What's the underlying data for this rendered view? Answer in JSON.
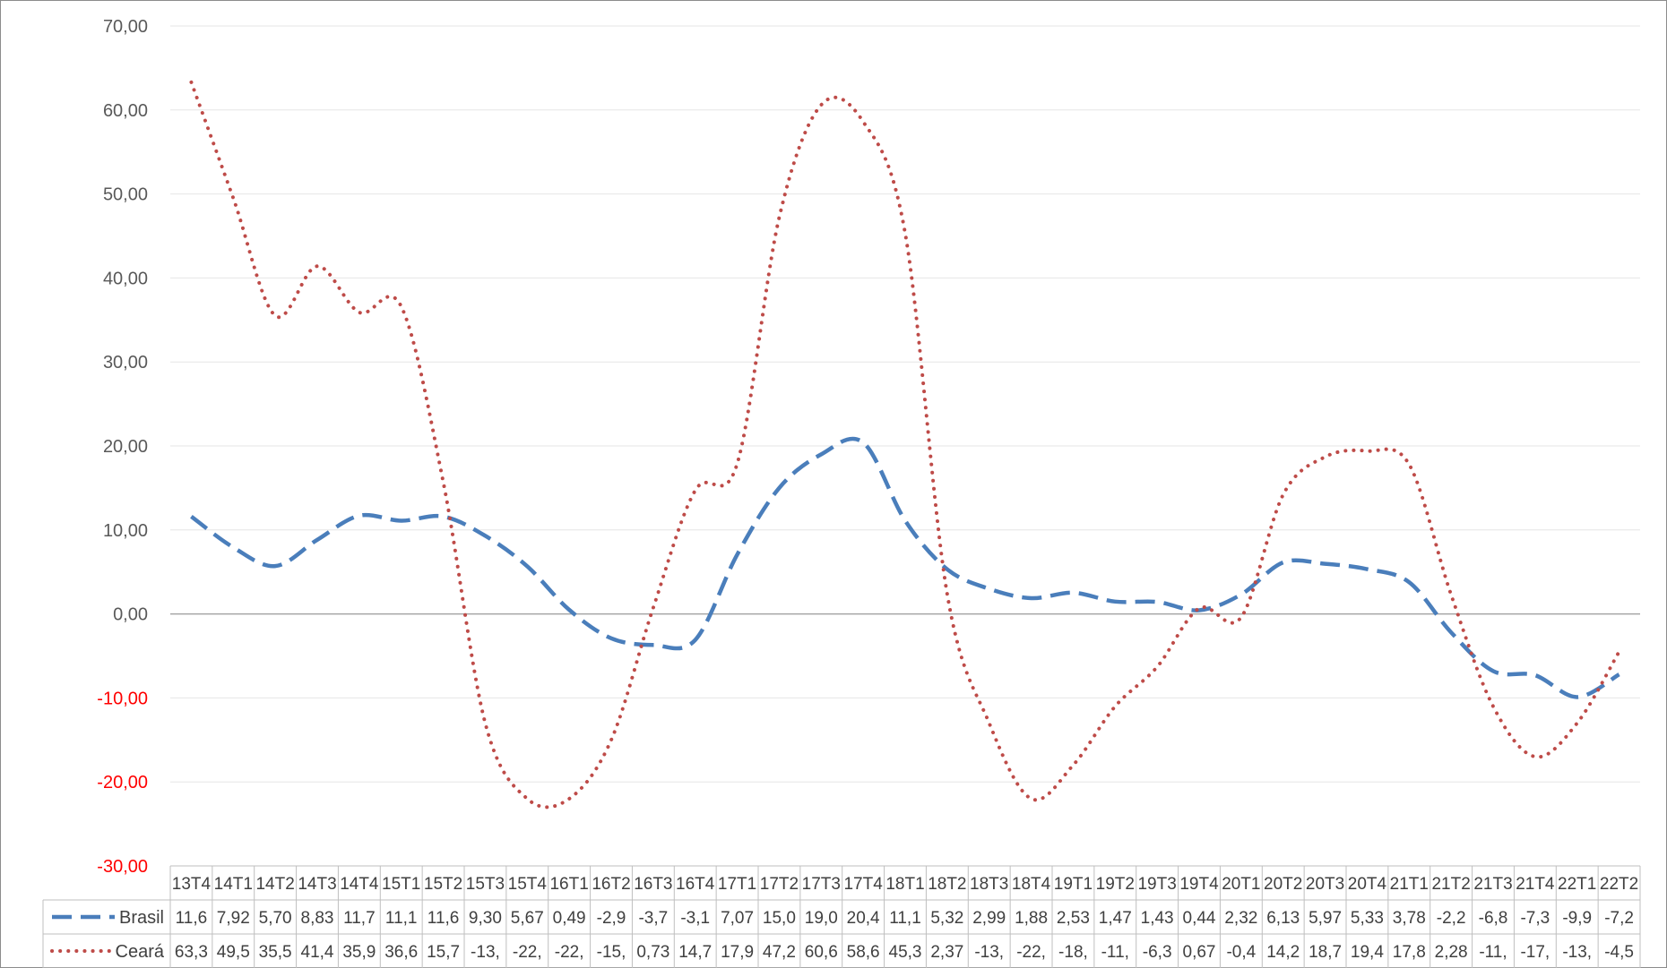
{
  "chart_data": {
    "type": "line",
    "y_ticks": [
      "70,00",
      "60,00",
      "50,00",
      "40,00",
      "30,00",
      "20,00",
      "10,00",
      "0,00",
      "-10,00",
      "-20,00",
      "-30,00"
    ],
    "ylim": [
      -30,
      70
    ],
    "grid": true,
    "legend": "data-table-left",
    "categories": [
      "13T4",
      "14T1",
      "14T2",
      "14T3",
      "14T4",
      "15T1",
      "15T2",
      "15T3",
      "15T4",
      "16T1",
      "16T2",
      "16T3",
      "16T4",
      "17T1",
      "17T2",
      "17T3",
      "17T4",
      "18T1",
      "18T2",
      "18T3",
      "18T4",
      "19T1",
      "19T2",
      "19T3",
      "19T4",
      "20T1",
      "20T2",
      "20T3",
      "20T4",
      "21T1",
      "21T2",
      "21T3",
      "21T4",
      "22T1",
      "22T2"
    ],
    "series": [
      {
        "name": "Brasil",
        "color": "#4a7ebb",
        "style": "dashed",
        "values": [
          11.6,
          7.92,
          5.7,
          8.83,
          11.7,
          11.1,
          11.6,
          9.3,
          5.67,
          0.49,
          -2.9,
          -3.7,
          -3.1,
          7.07,
          15.0,
          19.0,
          20.4,
          11.1,
          5.32,
          2.99,
          1.88,
          2.53,
          1.47,
          1.43,
          0.44,
          2.32,
          6.13,
          5.97,
          5.33,
          3.78,
          -2.2,
          -6.8,
          -7.3,
          -9.9,
          -7.2
        ],
        "labels": [
          "11,6",
          "7,92",
          "5,70",
          "8,83",
          "11,7",
          "11,1",
          "11,6",
          "9,30",
          "5,67",
          "0,49",
          "-2,9",
          "-3,7",
          "-3,1",
          "7,07",
          "15,0",
          "19,0",
          "20,4",
          "11,1",
          "5,32",
          "2,99",
          "1,88",
          "2,53",
          "1,47",
          "1,43",
          "0,44",
          "2,32",
          "6,13",
          "5,97",
          "5,33",
          "3,78",
          "-2,2",
          "-6,8",
          "-7,3",
          "-9,9",
          "-7,2"
        ]
      },
      {
        "name": "Ceará",
        "color": "#be4b48",
        "style": "dotted",
        "values": [
          63.3,
          49.5,
          35.5,
          41.4,
          35.9,
          36.6,
          15.7,
          -13,
          -22,
          -22,
          -15,
          0.73,
          14.7,
          17.9,
          47.2,
          60.6,
          58.6,
          45.3,
          2.37,
          -13,
          -22,
          -18,
          -11,
          -6.3,
          0.67,
          -0.4,
          14.2,
          18.7,
          19.4,
          17.8,
          2.28,
          -11,
          -17,
          -13,
          -4.5
        ],
        "labels": [
          "63,3",
          "49,5",
          "35,5",
          "41,4",
          "35,9",
          "36,6",
          "15,7",
          "-13,",
          "-22,",
          "-22,",
          "-15,",
          "0,73",
          "14,7",
          "17,9",
          "47,2",
          "60,6",
          "58,6",
          "45,3",
          "2,37",
          "-13,",
          "-22,",
          "-18,",
          "-11,",
          "-6,3",
          "0,67",
          "-0,4",
          "14,2",
          "18,7",
          "19,4",
          "17,8",
          "2,28",
          "-11,",
          "-17,",
          "-13,",
          "-4,5"
        ]
      }
    ]
  }
}
